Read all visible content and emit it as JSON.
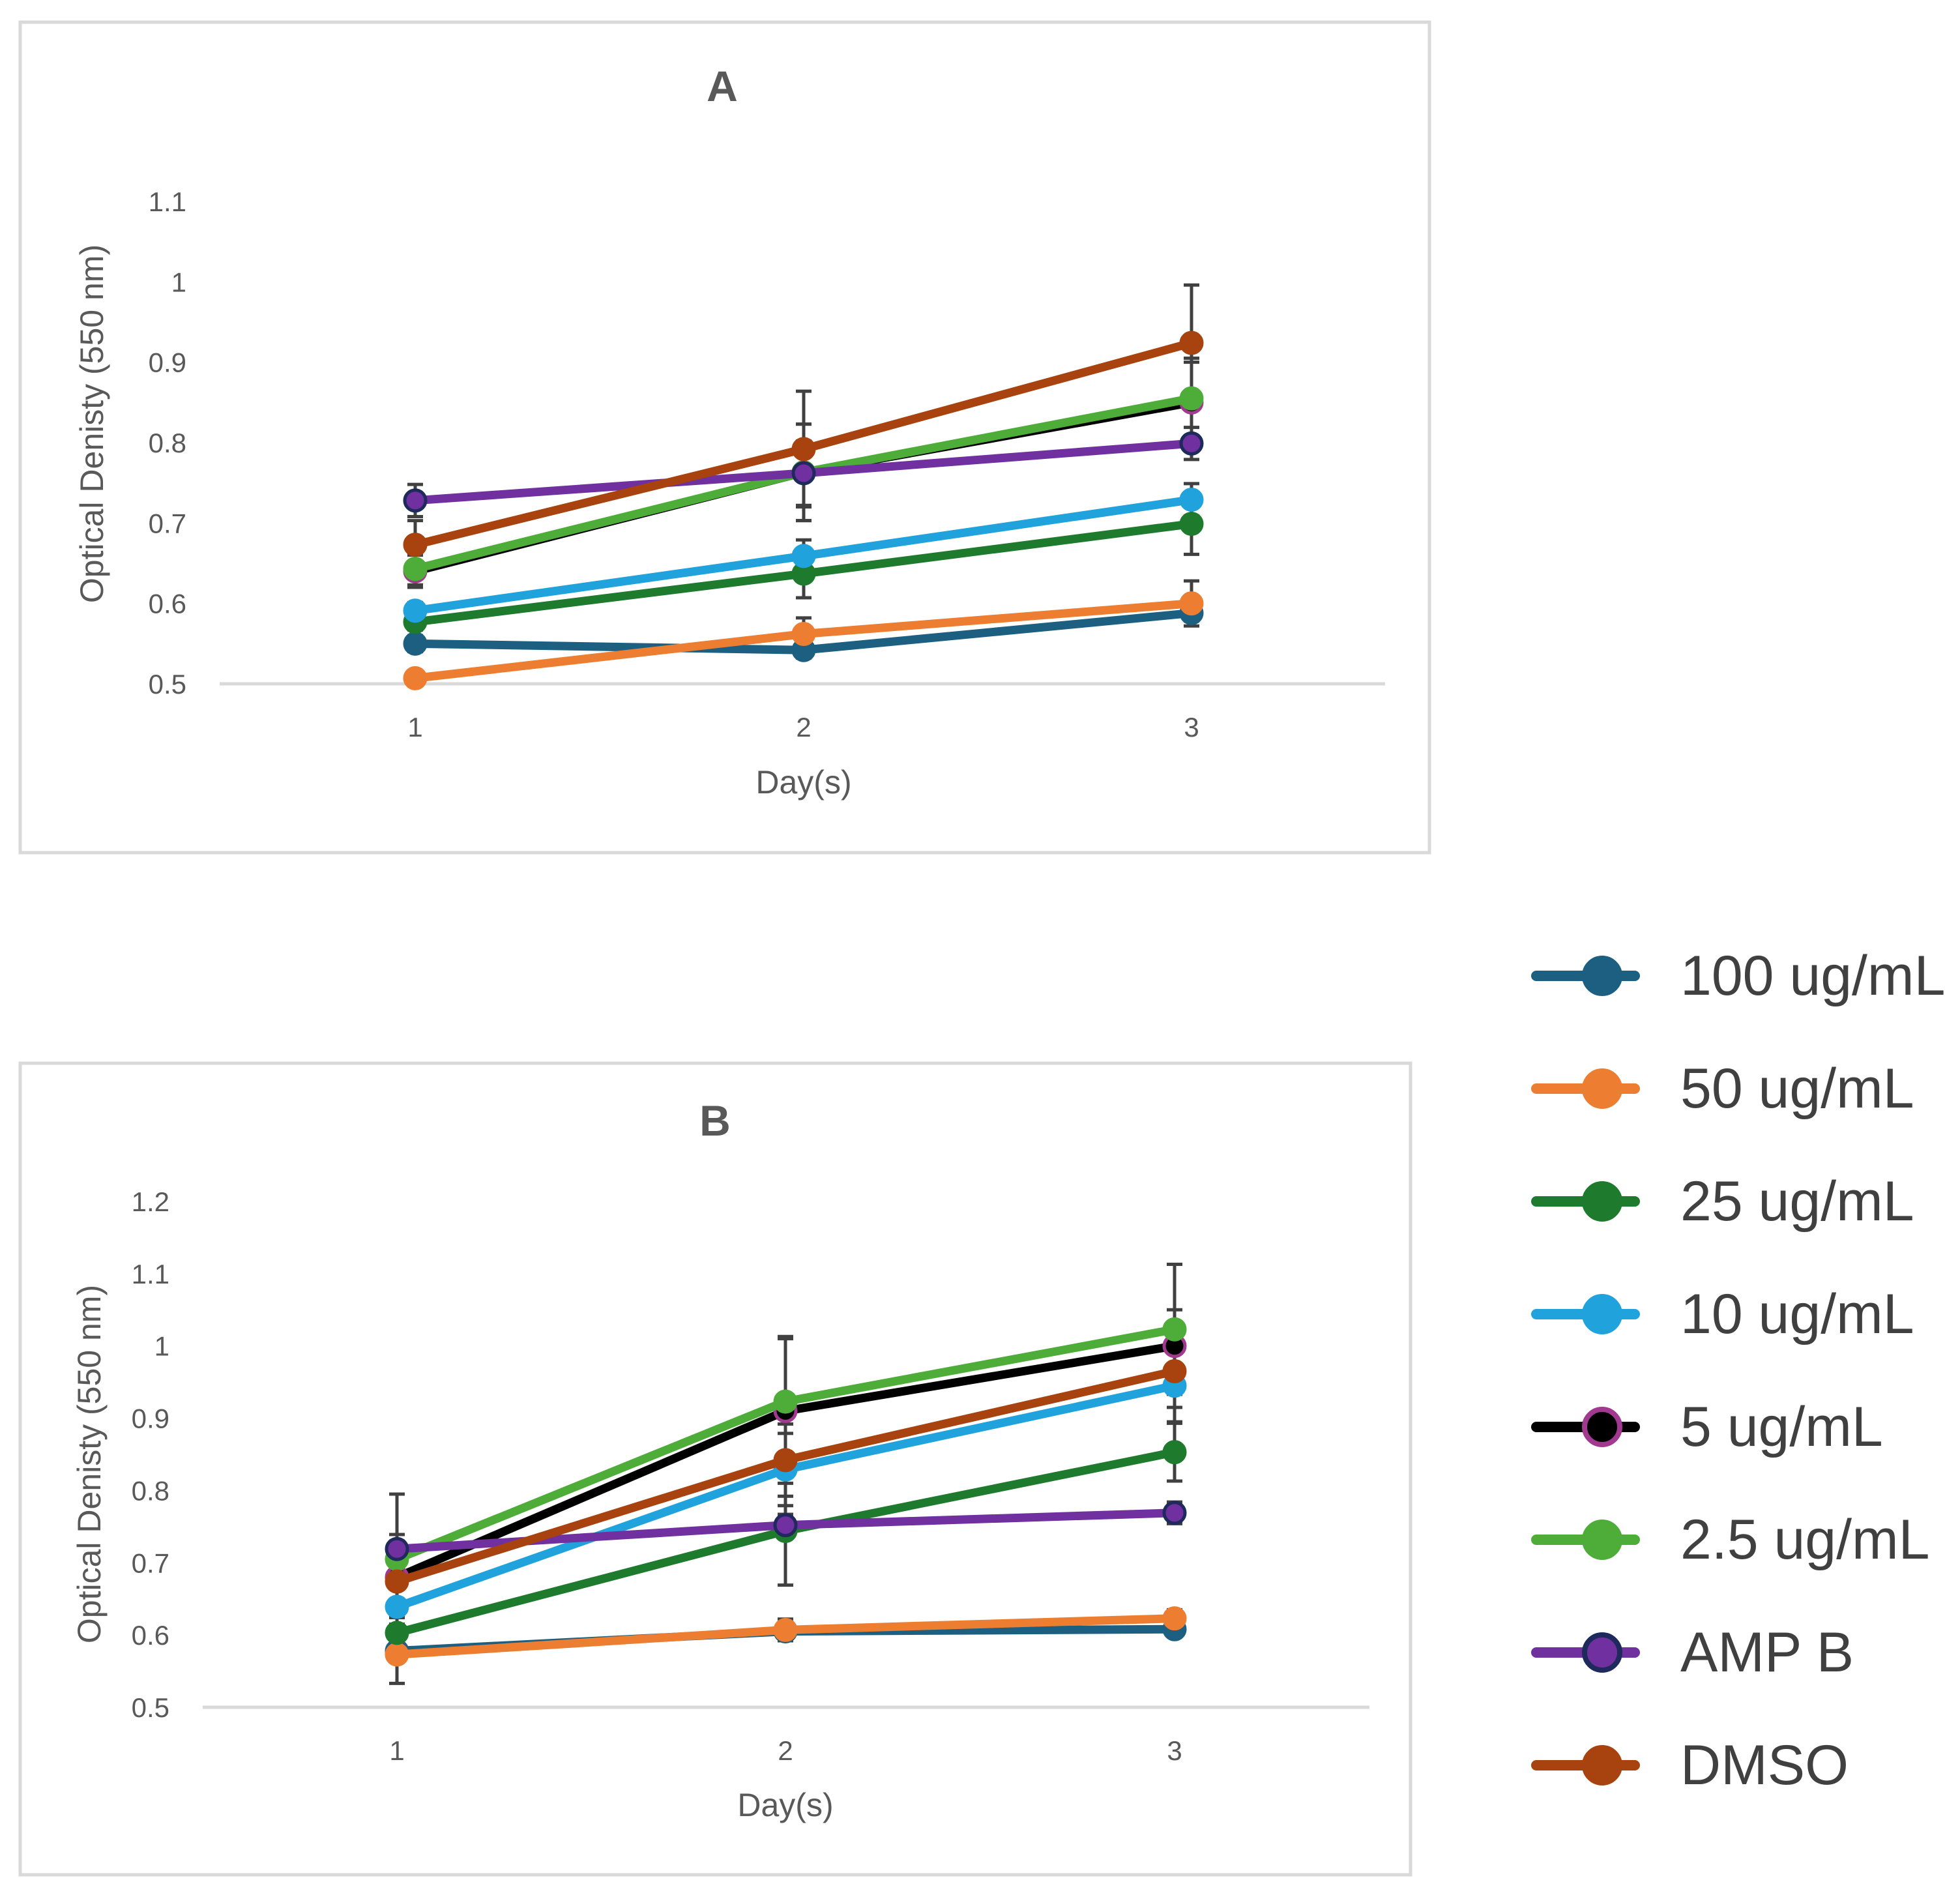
{
  "legend": {
    "position": "right",
    "items": [
      {
        "label": "100 ug/mL",
        "color": "#1c5f80",
        "marker_fill": "#1c5f80",
        "marker_edge": "#1c5f80"
      },
      {
        "label": "50 ug/mL",
        "color": "#ed7d31",
        "marker_fill": "#ed7d31",
        "marker_edge": "#ed7d31"
      },
      {
        "label": "25 ug/mL",
        "color": "#1e7a2c",
        "marker_fill": "#1e7a2c",
        "marker_edge": "#1e7a2c"
      },
      {
        "label": "10 ug/mL",
        "color": "#20a3dc",
        "marker_fill": "#20a3dc",
        "marker_edge": "#20a3dc"
      },
      {
        "label": "5 ug/mL",
        "color": "#000000",
        "marker_fill": "#000000",
        "marker_edge": "#a0398f"
      },
      {
        "label": "2.5 ug/mL",
        "color": "#4ead39",
        "marker_fill": "#4ead39",
        "marker_edge": "#4ead39"
      },
      {
        "label": "AMP B",
        "color": "#7030a0",
        "marker_fill": "#7030a0",
        "marker_edge": "#1f2a5c"
      },
      {
        "label": "DMSO",
        "color": "#a8420f",
        "marker_fill": "#a8420f",
        "marker_edge": "#a8420f"
      }
    ]
  },
  "chart_data": [
    {
      "type": "line",
      "title": "A",
      "xlabel": "Day(s)",
      "ylabel": "Optical Denisty (550 nm)",
      "categories": [
        "1",
        "2",
        "3"
      ],
      "ylim": [
        0.5,
        1.1
      ],
      "yticks": [
        "0.5",
        "0.6",
        "0.7",
        "0.8",
        "0.9",
        "1",
        "1.1"
      ],
      "series": [
        {
          "name": "100 ug/mL",
          "values": [
            0.55,
            0.542,
            0.588
          ],
          "errors": [
            0.01,
            0.01,
            0.01
          ]
        },
        {
          "name": "50 ug/mL",
          "values": [
            0.507,
            0.562,
            0.6
          ],
          "errors": [
            0.005,
            0.02,
            0.028
          ]
        },
        {
          "name": "25 ug/mL",
          "values": [
            0.577,
            0.637,
            0.699
          ],
          "errors": [
            0.01,
            0.03,
            0.038
          ]
        },
        {
          "name": "10 ug/mL",
          "values": [
            0.591,
            0.659,
            0.729
          ],
          "errors": [
            0.01,
            0.02,
            0.02
          ]
        },
        {
          "name": "5 ug/mL",
          "values": [
            0.64,
            0.763,
            0.85
          ],
          "errors": [
            0.02,
            0.06,
            0.05
          ]
        },
        {
          "name": "2.5 ug/mL",
          "values": [
            0.643,
            0.763,
            0.855
          ],
          "errors": [
            0.02,
            0.06,
            0.05
          ]
        },
        {
          "name": "AMP B",
          "values": [
            0.728,
            0.762,
            0.799
          ],
          "errors": [
            0.02,
            0.04,
            0.02
          ]
        },
        {
          "name": "DMSO",
          "values": [
            0.673,
            0.792,
            0.924
          ],
          "errors": [
            0.03,
            0.072,
            0.072
          ]
        }
      ]
    },
    {
      "type": "line",
      "title": "B",
      "xlabel": "Day(s)",
      "ylabel": "Optical Denisty (550 nm)",
      "categories": [
        "1",
        "2",
        "3"
      ],
      "ylim": [
        0.5,
        1.2
      ],
      "yticks": [
        "0.5",
        "0.6",
        "0.7",
        "0.8",
        "0.9",
        "1",
        "1.1",
        "1.2"
      ],
      "series": [
        {
          "name": "100 ug/mL",
          "values": [
            0.578,
            0.605,
            0.608
          ],
          "errors": [
            0.015,
            0.01,
            0.01
          ]
        },
        {
          "name": "50 ug/mL",
          "values": [
            0.573,
            0.607,
            0.623
          ],
          "errors": [
            0.04,
            0.015,
            0.012
          ]
        },
        {
          "name": "25 ug/mL",
          "values": [
            0.603,
            0.744,
            0.853
          ],
          "errors": [
            0.04,
            0.075,
            0.04
          ]
        },
        {
          "name": "10 ug/mL",
          "values": [
            0.639,
            0.829,
            0.945
          ],
          "errors": [
            0.04,
            0.05,
            0.05
          ]
        },
        {
          "name": "5 ug/mL",
          "values": [
            0.68,
            0.91,
            1.0
          ],
          "errors": [
            0.05,
            0.1,
            0.05
          ]
        },
        {
          "name": "2.5 ug/mL",
          "values": [
            0.705,
            0.923,
            1.023
          ],
          "errors": [
            0.09,
            0.09,
            0.09
          ]
        },
        {
          "name": "AMP B",
          "values": [
            0.719,
            0.752,
            0.769
          ],
          "errors": [
            0.02,
            0.015,
            0.015
          ]
        },
        {
          "name": "DMSO",
          "values": [
            0.674,
            0.842,
            0.965
          ],
          "errors": [
            0.05,
            0.05,
            0.05
          ]
        }
      ]
    }
  ]
}
